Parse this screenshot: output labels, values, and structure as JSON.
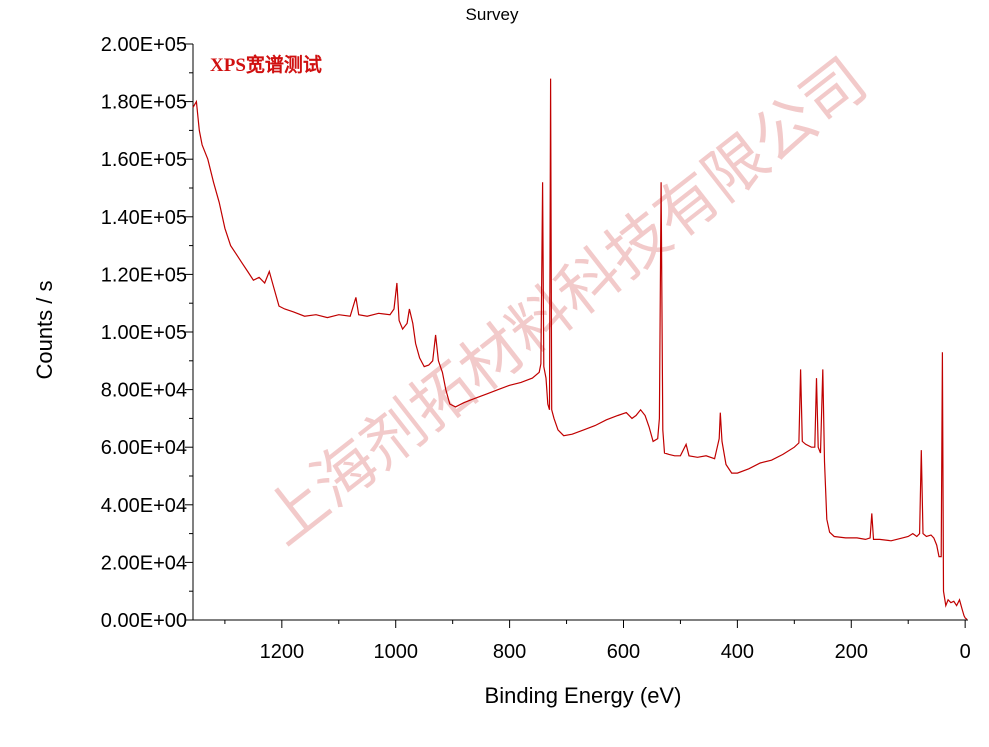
{
  "chart_data": {
    "type": "line",
    "title": "Survey",
    "x_label": "Binding Energy (eV)",
    "y_label": "Counts / s",
    "annotation": "XPS宽谱测试",
    "watermark": "上海剂拓材料科技有限公司",
    "x": [
      1356,
      1350,
      1345,
      1340,
      1330,
      1320,
      1310,
      1300,
      1290,
      1280,
      1270,
      1260,
      1250,
      1240,
      1230,
      1222,
      1215,
      1205,
      1195,
      1180,
      1160,
      1140,
      1120,
      1100,
      1080,
      1070,
      1065,
      1050,
      1030,
      1010,
      1003,
      998,
      994,
      988,
      980,
      976,
      970,
      965,
      958,
      950,
      942,
      935,
      930,
      925,
      918,
      912,
      905,
      895,
      880,
      860,
      840,
      820,
      800,
      780,
      760,
      748,
      745,
      742,
      740,
      736,
      733,
      730,
      728,
      726,
      722,
      715,
      705,
      690,
      670,
      650,
      630,
      610,
      595,
      585,
      578,
      570,
      562,
      555,
      548,
      540,
      537,
      534,
      531,
      528,
      520,
      510,
      500,
      490,
      485,
      470,
      455,
      440,
      432,
      430,
      427,
      420,
      410,
      400,
      380,
      360,
      340,
      320,
      300,
      292,
      289,
      286,
      280,
      270,
      264,
      261,
      258,
      254,
      250,
      247,
      243,
      238,
      230,
      210,
      190,
      175,
      167,
      164,
      161,
      150,
      130,
      110,
      100,
      92,
      85,
      80,
      77,
      74,
      68,
      60,
      55,
      50,
      46,
      42,
      40,
      38,
      34,
      30,
      25,
      20,
      15,
      10,
      5,
      2,
      0,
      -3
    ],
    "series": [
      {
        "name": "Survey",
        "color": "#c00000",
        "values": [
          178000,
          180000,
          170000,
          165000,
          160000,
          152000,
          145000,
          136000,
          130000,
          127000,
          124000,
          121000,
          118000,
          119000,
          117000,
          121000,
          116000,
          109000,
          108000,
          107000,
          105500,
          106000,
          105000,
          106000,
          105500,
          112000,
          106000,
          105500,
          106500,
          106000,
          108000,
          117000,
          104000,
          101000,
          103000,
          108000,
          103000,
          96000,
          91000,
          88000,
          88500,
          90000,
          99000,
          90000,
          86000,
          80000,
          75000,
          74000,
          75500,
          77000,
          78500,
          80000,
          81500,
          82500,
          84000,
          86000,
          89000,
          152000,
          88000,
          84000,
          75000,
          73000,
          188000,
          73000,
          70000,
          66000,
          64000,
          64500,
          66000,
          67500,
          69500,
          71000,
          72000,
          70000,
          71000,
          73000,
          71000,
          67000,
          62000,
          63000,
          70000,
          152000,
          66000,
          58000,
          57500,
          57000,
          57000,
          61000,
          57000,
          56500,
          57000,
          56000,
          63000,
          72000,
          62000,
          54000,
          51000,
          51000,
          52500,
          54500,
          55500,
          57500,
          60000,
          61500,
          87000,
          62000,
          61000,
          60000,
          60000,
          84000,
          60000,
          58000,
          87000,
          55000,
          35000,
          30500,
          29000,
          28500,
          28500,
          28000,
          28500,
          37000,
          28000,
          28000,
          27500,
          28500,
          29000,
          30000,
          29000,
          30000,
          59000,
          30000,
          29000,
          29500,
          28500,
          26000,
          22000,
          22000,
          93000,
          10000,
          5000,
          7000,
          6000,
          6500,
          5000,
          7000,
          3500,
          1500,
          700,
          200
        ]
      }
    ],
    "xlim": [
      1356,
      -5
    ],
    "ylim": [
      0,
      200000
    ],
    "xticks": [
      0,
      200,
      400,
      600,
      800,
      1000,
      1200
    ],
    "xminorticks": [
      100,
      300,
      500,
      700,
      900,
      1100,
      1300
    ],
    "yticks": [
      {
        "value": 0,
        "label": "0.00E+00"
      },
      {
        "value": 20000,
        "label": "2.00E+04"
      },
      {
        "value": 40000,
        "label": "4.00E+04"
      },
      {
        "value": 60000,
        "label": "6.00E+04"
      },
      {
        "value": 80000,
        "label": "8.00E+04"
      },
      {
        "value": 100000,
        "label": "1.00E+05"
      },
      {
        "value": 120000,
        "label": "1.20E+05"
      },
      {
        "value": 140000,
        "label": "1.40E+05"
      },
      {
        "value": 160000,
        "label": "1.60E+05"
      },
      {
        "value": 180000,
        "label": "1.80E+05"
      },
      {
        "value": 200000,
        "label": "2.00E+05"
      }
    ],
    "yminorticks": [
      10000,
      30000,
      50000,
      70000,
      90000,
      110000,
      130000,
      150000,
      170000,
      190000
    ]
  }
}
